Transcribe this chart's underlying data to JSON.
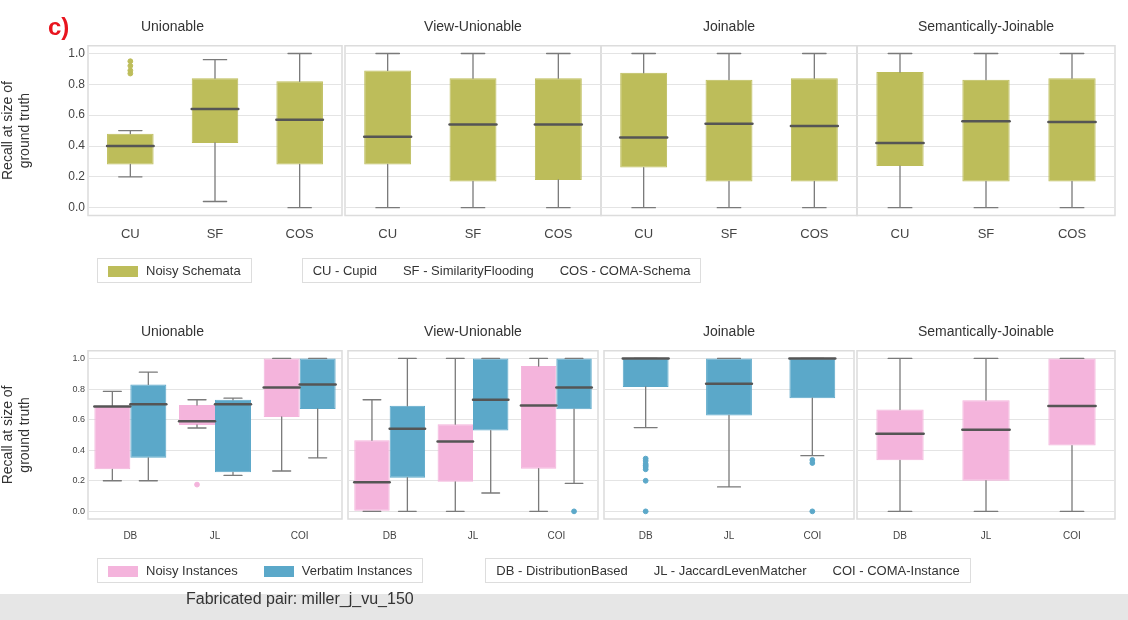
{
  "chart_data": [
    {
      "type": "box",
      "title": "Unionable",
      "ylabel": "Recall at size of\nground truth",
      "categories": [
        "CU",
        "SF",
        "COS"
      ],
      "ylim": [
        -0.05,
        1.05
      ],
      "yticks": [
        {
          "value": 0,
          "label": "0.0"
        },
        {
          "value": 0.2,
          "label": "0.2"
        },
        {
          "value": 0.4,
          "label": "0.4"
        },
        {
          "value": 0.6,
          "label": "0.6"
        },
        {
          "value": 0.8,
          "label": "0.8"
        },
        {
          "value": 1,
          "label": "1.0"
        }
      ],
      "grid": "y",
      "legend": "bottom",
      "annotations": [
        "c)",
        "CU - Cupid",
        "SF - SimilarityFlooding",
        "COS - COMA-Schema"
      ],
      "series": [
        {
          "name": "Noisy Schemata",
          "color": "#bdbd5a",
          "boxes": [
            {
              "low": 0.2,
              "q1": 0.28,
              "median": 0.4,
              "q3": 0.48,
              "high": 0.5,
              "outliers": [
                0.87,
                0.89,
                0.92,
                0.95
              ]
            },
            {
              "low": 0.04,
              "q1": 0.42,
              "median": 0.64,
              "q3": 0.84,
              "high": 0.96
            },
            {
              "low": 0,
              "q1": 0.28,
              "median": 0.57,
              "q3": 0.82,
              "high": 1
            }
          ]
        }
      ]
    },
    {
      "type": "box",
      "title": "View-Unionable",
      "categories": [
        "CU",
        "SF",
        "COS"
      ],
      "ylim": [
        -0.05,
        1.05
      ],
      "yticks": [
        0,
        0.2,
        0.4,
        0.6,
        0.8,
        1
      ],
      "grid": "y",
      "tick_labels": "x",
      "series": [
        {
          "color": "#bdbd5a",
          "boxes": [
            {
              "low": 0,
              "q1": 0.28,
              "median": 0.46,
              "q3": 0.89,
              "high": 1
            },
            {
              "low": 0,
              "q1": 0.17,
              "median": 0.54,
              "q3": 0.84,
              "high": 1
            },
            {
              "low": 0,
              "q1": 0.18,
              "median": 0.54,
              "q3": 0.84,
              "high": 1
            }
          ]
        }
      ]
    },
    {
      "type": "box",
      "title": "Joinable",
      "categories": [
        "CU",
        "SF",
        "COS"
      ],
      "ylim": [
        -0.05,
        1.05
      ],
      "yticks": [
        0,
        0.2,
        0.4,
        0.6,
        0.8,
        1
      ],
      "grid": "y",
      "tick_labels": "x",
      "series": [
        {
          "color": "#bdbd5a",
          "boxes": [
            {
              "low": 0,
              "q1": 0.26,
              "median": 0.455,
              "q3": 0.875,
              "high": 1
            },
            {
              "low": 0,
              "q1": 0.17,
              "median": 0.545,
              "q3": 0.83,
              "high": 1
            },
            {
              "low": 0,
              "q1": 0.17,
              "median": 0.53,
              "q3": 0.84,
              "high": 1
            }
          ]
        }
      ]
    },
    {
      "type": "box",
      "title": "Semantically-Joinable",
      "categories": [
        "CU",
        "SF",
        "COS"
      ],
      "ylim": [
        -0.05,
        1.05
      ],
      "yticks": [
        0,
        0.2,
        0.4,
        0.6,
        0.8,
        1
      ],
      "grid": "y",
      "tick_labels": "x",
      "series": [
        {
          "color": "#bdbd5a",
          "boxes": [
            {
              "low": 0,
              "q1": 0.27,
              "median": 0.42,
              "q3": 0.88,
              "high": 1
            },
            {
              "low": 0,
              "q1": 0.17,
              "median": 0.56,
              "q3": 0.83,
              "high": 1
            },
            {
              "low": 0,
              "q1": 0.17,
              "median": 0.555,
              "q3": 0.84,
              "high": 1
            }
          ]
        }
      ]
    },
    {
      "type": "box",
      "title": "Unionable",
      "ylabel": "Recall at size of\nground truth",
      "categories": [
        "DB",
        "JL",
        "COI"
      ],
      "ylim": [
        -0.05,
        1.05
      ],
      "yticks": [
        {
          "value": 0,
          "label": "0.0"
        },
        {
          "value": 0.2,
          "label": "0.2"
        },
        {
          "value": 0.4,
          "label": "0.4"
        },
        {
          "value": 0.6,
          "label": "0.6"
        },
        {
          "value": 0.8,
          "label": "0.8"
        },
        {
          "value": 1,
          "label": "1.0"
        }
      ],
      "grid": "y",
      "legend": "bottom",
      "annotations": [
        "DB - DistributionBased",
        "JL - JaccardLevenMatcher",
        "COI - COMA-Instance",
        "Fabricated pair: miller_j_vu_150"
      ],
      "series": [
        {
          "name": "Noisy Instances",
          "color": "#f4b4dc",
          "boxes": [
            {
              "low": 0.2,
              "q1": 0.275,
              "median": 0.685,
              "q3": 0.69,
              "high": 0.785
            },
            {
              "low": 0.545,
              "q1": 0.565,
              "median": 0.59,
              "q3": 0.695,
              "high": 0.73,
              "outliers": [
                0.175
              ]
            },
            {
              "low": 0.264,
              "q1": 0.617,
              "median": 0.81,
              "q3": 1,
              "high": 1
            }
          ]
        },
        {
          "name": "Verbatim Instances",
          "color": "#5ba8c9",
          "boxes": [
            {
              "low": 0.2,
              "q1": 0.35,
              "median": 0.7,
              "q3": 0.83,
              "high": 0.91
            },
            {
              "low": 0.235,
              "q1": 0.255,
              "median": 0.7,
              "q3": 0.73,
              "high": 0.74
            },
            {
              "low": 0.35,
              "q1": 0.67,
              "median": 0.83,
              "q3": 1,
              "high": 1
            }
          ]
        }
      ]
    },
    {
      "type": "box",
      "title": "View-Unionable",
      "categories": [
        "DB",
        "JL",
        "COI"
      ],
      "ylim": [
        -0.05,
        1.05
      ],
      "yticks": [
        0,
        0.2,
        0.4,
        0.6,
        0.8,
        1
      ],
      "grid": "y",
      "tick_labels": "x",
      "series": [
        {
          "color": "#f4b4dc",
          "boxes": [
            {
              "low": 0,
              "q1": 0,
              "median": 0.19,
              "q3": 0.465,
              "high": 0.73
            },
            {
              "low": 0,
              "q1": 0.193,
              "median": 0.457,
              "q3": 0.57,
              "high": 1
            },
            {
              "low": 0,
              "q1": 0.279,
              "median": 0.693,
              "q3": 0.95,
              "high": 1
            }
          ]
        },
        {
          "color": "#5ba8c9",
          "boxes": [
            {
              "low": 0,
              "q1": 0.22,
              "median": 0.54,
              "q3": 0.69,
              "high": 1
            },
            {
              "low": 0.12,
              "q1": 0.528,
              "median": 0.73,
              "q3": 1,
              "high": 1
            },
            {
              "low": 0.183,
              "q1": 0.668,
              "median": 0.81,
              "q3": 1,
              "high": 1,
              "outliers": [
                0
              ]
            }
          ]
        }
      ]
    },
    {
      "type": "box",
      "title": "Joinable",
      "categories": [
        "DB",
        "JL",
        "COI"
      ],
      "ylim": [
        -0.05,
        1.05
      ],
      "yticks": [
        0,
        0.2,
        0.4,
        0.6,
        0.8,
        1
      ],
      "grid": "y",
      "tick_labels": "x",
      "series": [
        {
          "color": "#5ba8c9",
          "boxes": [
            {
              "low": 0.548,
              "q1": 0.814,
              "median": 1,
              "q3": 1,
              "high": 1,
              "outliers": [
                0.345,
                0.33,
                0.31,
                0.3,
                0.29,
                0.275,
                0.2,
                0
              ]
            },
            {
              "low": 0.16,
              "q1": 0.627,
              "median": 0.834,
              "q3": 1,
              "high": 1
            },
            {
              "low": 0.364,
              "q1": 0.74,
              "median": 1,
              "q3": 1,
              "high": 1,
              "outliers": [
                0.336,
                0.316,
                0
              ]
            }
          ]
        }
      ]
    },
    {
      "type": "box",
      "title": "Semantically-Joinable",
      "categories": [
        "DB",
        "JL",
        "COI"
      ],
      "ylim": [
        -0.05,
        1.05
      ],
      "yticks": [
        0,
        0.2,
        0.4,
        0.6,
        0.8,
        1
      ],
      "grid": "y",
      "tick_labels": "x",
      "series": [
        {
          "color": "#f4b4dc",
          "boxes": [
            {
              "low": 0,
              "q1": 0.334,
              "median": 0.507,
              "q3": 0.666,
              "high": 1
            },
            {
              "low": 0,
              "q1": 0.2,
              "median": 0.534,
              "q3": 0.727,
              "high": 1
            },
            {
              "low": 0,
              "q1": 0.43,
              "median": 0.689,
              "q3": 1,
              "high": 1
            }
          ]
        }
      ]
    }
  ]
}
